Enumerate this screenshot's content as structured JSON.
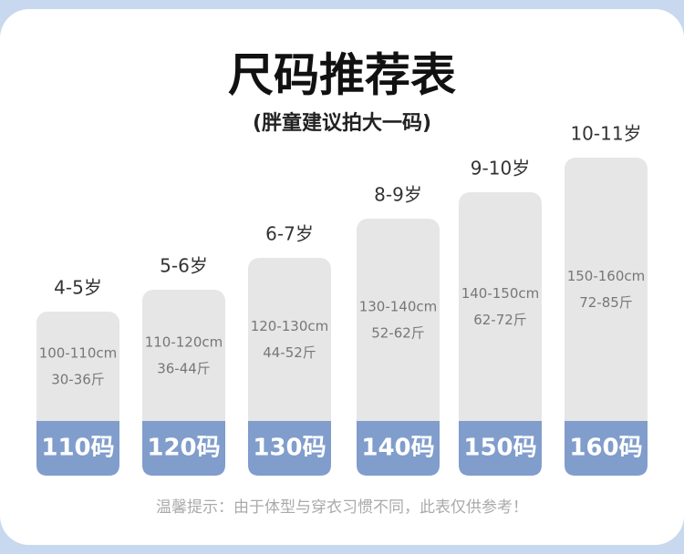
{
  "header": {
    "title": "尺码推荐表",
    "subtitle": "(胖童建议拍大一码)"
  },
  "columns": [
    {
      "age": "4-5岁",
      "height": "100-110cm",
      "weight": "30-36斤",
      "size": "110码"
    },
    {
      "age": "5-6岁",
      "height": "110-120cm",
      "weight": "36-44斤",
      "size": "120码"
    },
    {
      "age": "6-7岁",
      "height": "120-130cm",
      "weight": "44-52斤",
      "size": "130码"
    },
    {
      "age": "8-9岁",
      "height": "130-140cm",
      "weight": "52-62斤",
      "size": "140码"
    },
    {
      "age": "9-10岁",
      "height": "140-150cm",
      "weight": "62-72斤",
      "size": "150码"
    },
    {
      "age": "10-11岁",
      "height": "150-160cm",
      "weight": "72-85斤",
      "size": "160码"
    }
  ],
  "footer": "温馨提示：由于体型与穿衣习惯不同，此表仅供参考！"
}
